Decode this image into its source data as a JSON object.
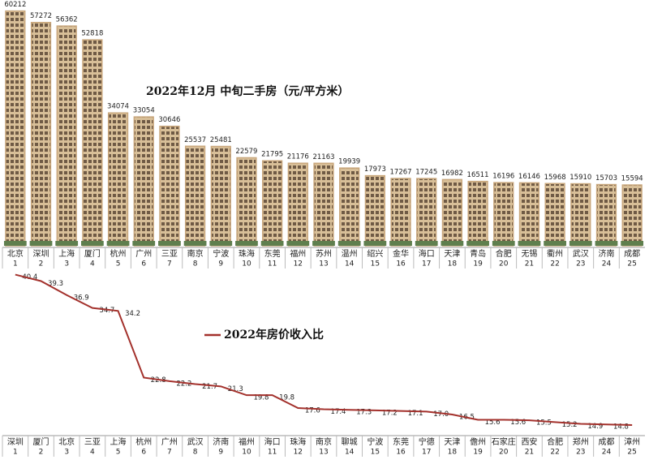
{
  "chart_data": [
    {
      "type": "bar",
      "title": "2022年12月 中旬二手房（元/平方米）",
      "categories": [
        "北京",
        "深圳",
        "上海",
        "厦门",
        "杭州",
        "广州",
        "三亚",
        "南京",
        "宁波",
        "珠海",
        "东莞",
        "福州",
        "苏州",
        "温州",
        "绍兴",
        "金华",
        "海口",
        "天津",
        "青岛",
        "合肥",
        "无锡",
        "衢州",
        "武汉",
        "济南",
        "成都"
      ],
      "ranks": [
        1,
        2,
        3,
        4,
        5,
        6,
        7,
        8,
        9,
        10,
        11,
        12,
        13,
        14,
        15,
        16,
        17,
        18,
        19,
        20,
        21,
        22,
        23,
        24,
        25
      ],
      "values": [
        60212,
        57272,
        56362,
        52818,
        34074,
        33054,
        30646,
        25537,
        25481,
        22579,
        21795,
        21176,
        21163,
        19939,
        17973,
        17267,
        17245,
        16982,
        16511,
        16196,
        16146,
        15968,
        15910,
        15703,
        15594
      ],
      "color": "#c9a77c",
      "ylim": [
        0,
        62000
      ]
    },
    {
      "type": "line",
      "categories": [
        "深圳",
        "厦门",
        "北京",
        "三亚",
        "上海",
        "杭州",
        "广州",
        "武汉",
        "济南",
        "福州",
        "海口",
        "珠海",
        "南京",
        "聊城",
        "宁波",
        "东莞",
        "宁德",
        "天津",
        "儋州",
        "石家庄",
        "西安",
        "合肥",
        "郑州",
        "成都",
        "漳州"
      ],
      "ranks": [
        1,
        2,
        3,
        4,
        5,
        6,
        7,
        8,
        9,
        10,
        11,
        12,
        13,
        14,
        15,
        16,
        17,
        18,
        19,
        20,
        21,
        22,
        23,
        24,
        25
      ],
      "series": [
        {
          "name": "2022年房价收入比",
          "color": "#a3312c",
          "values": [
            40.4,
            39.3,
            36.9,
            34.7,
            34.2,
            22.8,
            22.2,
            21.7,
            21.3,
            19.8,
            19.8,
            17.6,
            17.4,
            17.3,
            17.2,
            17.1,
            17.0,
            16.5,
            15.6,
            15.6,
            15.5,
            15.2,
            14.9,
            14.8,
            14.7
          ],
          "value_labels": [
            "40.4",
            "39.3",
            "36.9",
            "34.7",
            "34.2",
            "22.8",
            "22.2",
            "21.7",
            "21.3",
            "19.8",
            "19.8",
            "17.6",
            "17.4",
            "17.3",
            "17.2",
            "17.1",
            "17.0",
            "16.5",
            "15.6",
            "15.6",
            "15.5",
            "15.2",
            "14.9",
            "14.8",
            null
          ]
        }
      ],
      "ylim": [
        14,
        42
      ]
    }
  ]
}
